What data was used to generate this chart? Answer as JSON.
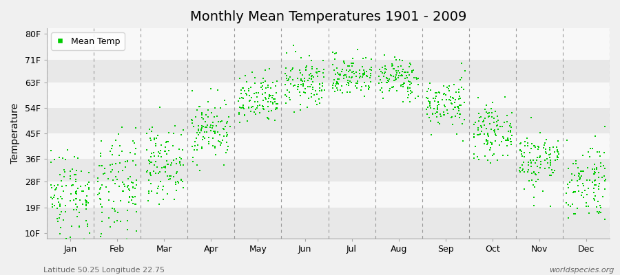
{
  "title": "Monthly Mean Temperatures 1901 - 2009",
  "ylabel": "Temperature",
  "xlabel_labels": [
    "Jan",
    "Feb",
    "Mar",
    "Apr",
    "May",
    "Jun",
    "Jul",
    "Aug",
    "Sep",
    "Oct",
    "Nov",
    "Dec"
  ],
  "ytick_labels": [
    "10F",
    "19F",
    "28F",
    "36F",
    "45F",
    "54F",
    "63F",
    "71F",
    "80F"
  ],
  "ytick_values": [
    10,
    19,
    28,
    36,
    45,
    54,
    63,
    71,
    80
  ],
  "ylim": [
    8,
    82
  ],
  "dot_color": "#00cc00",
  "background_color": "#f0f0f0",
  "plot_bg_light": "#f8f8f8",
  "plot_bg_dark": "#e8e8e8",
  "legend_label": "Mean Temp",
  "footer_left": "Latitude 50.25 Longitude 22.75",
  "footer_right": "worldspecies.org",
  "years": 109,
  "monthly_means_celsius": [
    -4.5,
    -3.5,
    1.5,
    8.0,
    13.5,
    17.0,
    18.5,
    18.0,
    13.0,
    7.5,
    2.0,
    -2.0
  ],
  "monthly_stds_celsius": [
    4.5,
    5.0,
    3.5,
    3.0,
    2.5,
    2.5,
    2.0,
    2.0,
    2.5,
    2.5,
    3.0,
    4.0
  ],
  "seed": 42
}
